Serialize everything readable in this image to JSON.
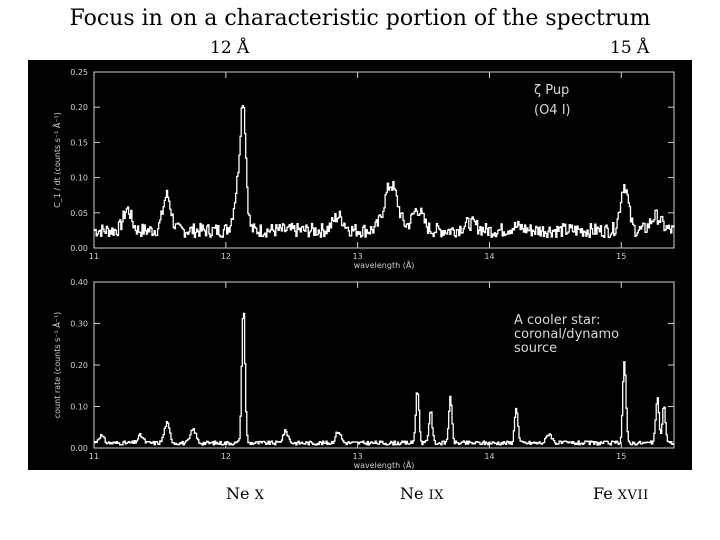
{
  "slide": {
    "title": "Focus in on a characteristic portion of the spectrum",
    "marker_left": "12 Å",
    "marker_right": "15 Å",
    "lines": [
      {
        "element": "Ne",
        "ion": "X"
      },
      {
        "element": "Ne",
        "ion": "IX"
      },
      {
        "element": "Fe",
        "ion": "XVII"
      }
    ]
  },
  "colors": {
    "panel_background": "#000000",
    "trace": "#ffffff",
    "axis": "#cfcfcf",
    "text": "#000000"
  },
  "chart_data": [
    {
      "type": "line",
      "xlabel": "wavelength (Å)",
      "ylabel": "C_1 / dt (counts s⁻¹ Å⁻¹)",
      "xlim": [
        11,
        15.4
      ],
      "ylim": [
        0,
        0.25
      ],
      "xticks": [
        11,
        12,
        13,
        14,
        15
      ],
      "yticks": [
        0.0,
        0.05,
        0.1,
        0.15,
        0.2,
        0.25
      ],
      "ytick_labels": [
        "0.00",
        "0.05",
        "0.10",
        "0.15",
        "0.20",
        "0.25"
      ],
      "annotation": [
        "ζ Pup",
        "(O4 I)"
      ],
      "baseline": 0.025,
      "peaks": [
        {
          "x": 11.25,
          "y": 0.055,
          "w": 0.03
        },
        {
          "x": 11.55,
          "y": 0.075,
          "w": 0.03
        },
        {
          "x": 12.1,
          "y": 0.095,
          "w": 0.035
        },
        {
          "x": 12.13,
          "y": 0.16,
          "w": 0.02
        },
        {
          "x": 12.85,
          "y": 0.045,
          "w": 0.04
        },
        {
          "x": 13.25,
          "y": 0.09,
          "w": 0.05
        },
        {
          "x": 13.45,
          "y": 0.055,
          "w": 0.04
        },
        {
          "x": 13.85,
          "y": 0.035,
          "w": 0.05
        },
        {
          "x": 14.2,
          "y": 0.03,
          "w": 0.05
        },
        {
          "x": 15.02,
          "y": 0.09,
          "w": 0.03
        },
        {
          "x": 15.26,
          "y": 0.045,
          "w": 0.04
        }
      ]
    },
    {
      "type": "line",
      "xlabel": "wavelength (Å)",
      "ylabel": "count rate (counts s⁻¹ Å⁻¹)",
      "xlim": [
        11,
        15.4
      ],
      "ylim": [
        0,
        0.4
      ],
      "xticks": [
        11,
        12,
        13,
        14,
        15
      ],
      "yticks": [
        0.0,
        0.1,
        0.2,
        0.3,
        0.4
      ],
      "ytick_labels": [
        "0.00",
        "0.10",
        "0.20",
        "0.30",
        "0.40"
      ],
      "annotation": [
        "A cooler star:",
        "coronal/dynamo",
        "source"
      ],
      "baseline": 0.012,
      "peaks": [
        {
          "x": 11.05,
          "y": 0.03,
          "w": 0.02
        },
        {
          "x": 11.35,
          "y": 0.03,
          "w": 0.02
        },
        {
          "x": 11.55,
          "y": 0.06,
          "w": 0.02
        },
        {
          "x": 11.75,
          "y": 0.045,
          "w": 0.02
        },
        {
          "x": 12.13,
          "y": 0.34,
          "w": 0.012
        },
        {
          "x": 12.45,
          "y": 0.04,
          "w": 0.02
        },
        {
          "x": 12.85,
          "y": 0.04,
          "w": 0.02
        },
        {
          "x": 13.45,
          "y": 0.14,
          "w": 0.012
        },
        {
          "x": 13.55,
          "y": 0.09,
          "w": 0.012
        },
        {
          "x": 13.7,
          "y": 0.12,
          "w": 0.012
        },
        {
          "x": 14.2,
          "y": 0.1,
          "w": 0.012
        },
        {
          "x": 14.45,
          "y": 0.035,
          "w": 0.02
        },
        {
          "x": 15.02,
          "y": 0.21,
          "w": 0.012
        },
        {
          "x": 15.27,
          "y": 0.12,
          "w": 0.012
        },
        {
          "x": 15.32,
          "y": 0.1,
          "w": 0.012
        }
      ]
    }
  ]
}
